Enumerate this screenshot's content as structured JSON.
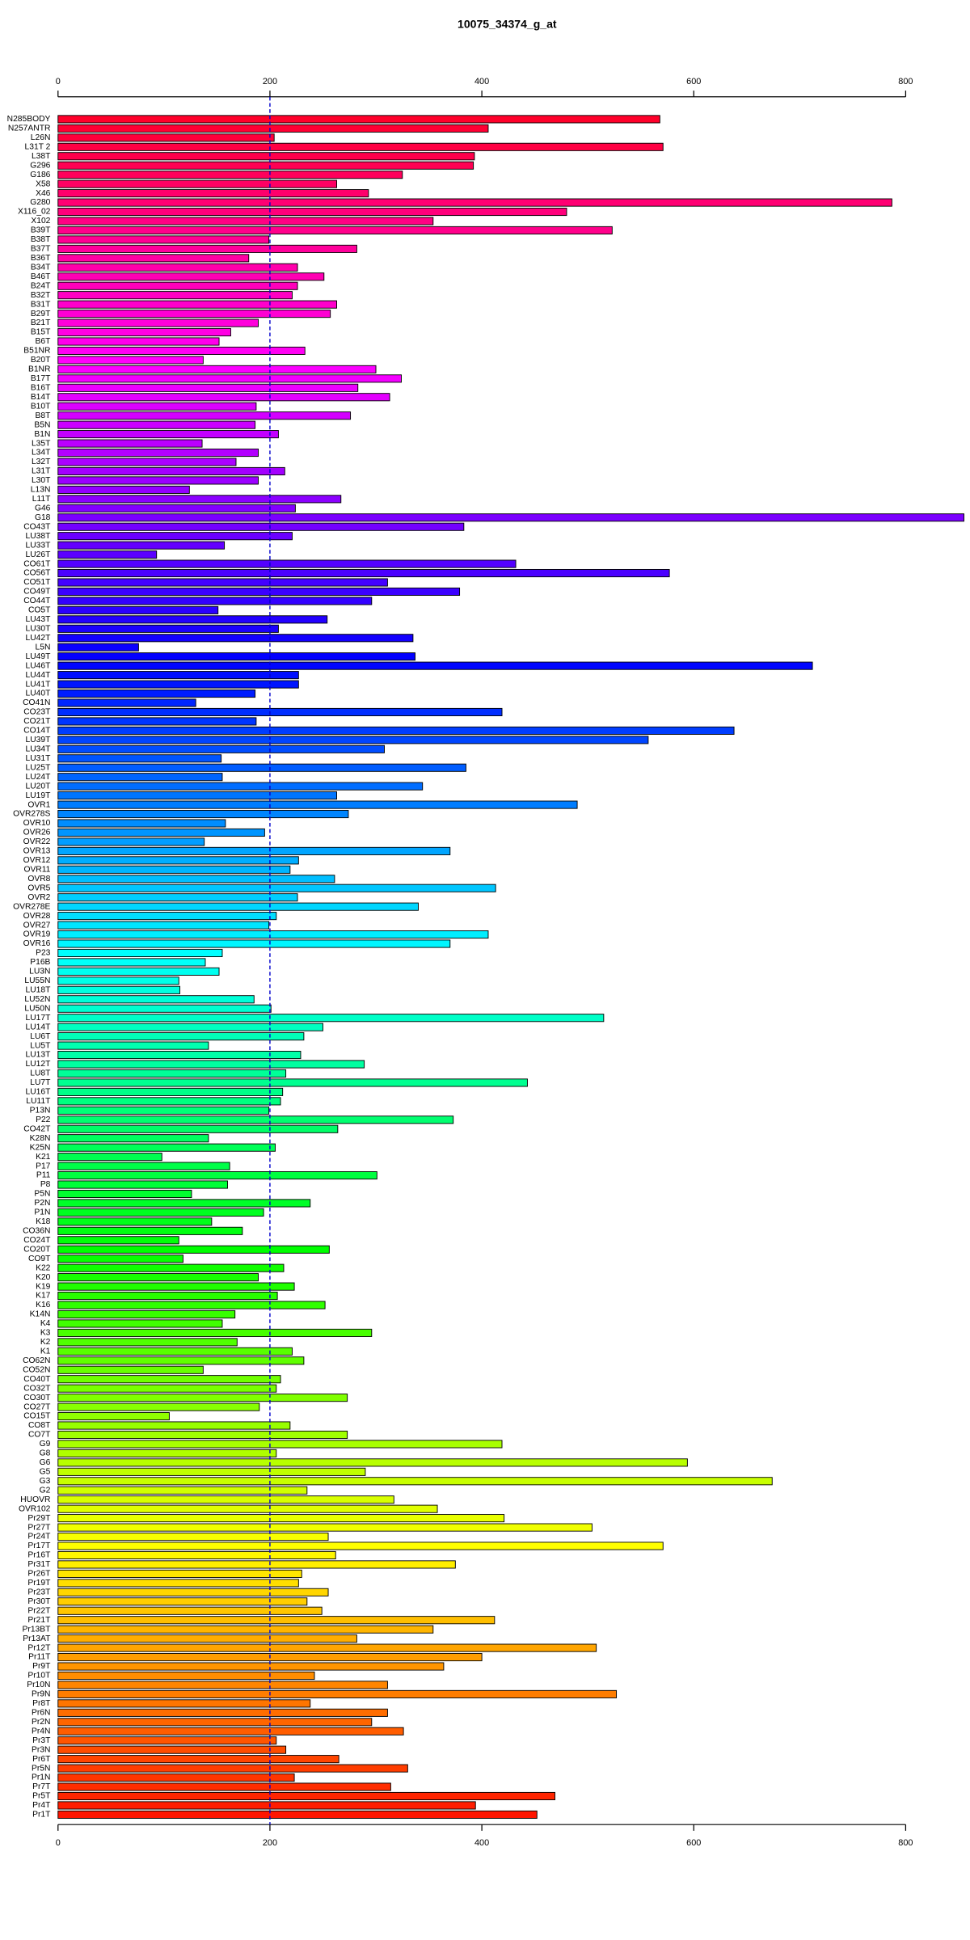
{
  "chart_data": {
    "type": "barh",
    "title": "10075_34374_g_at",
    "categories": [
      "N285BODY",
      "N257ANTR",
      "L26N",
      "L31T 2",
      "L38T",
      "G296",
      "G186",
      "X58",
      "X46",
      "G280",
      "X116_02",
      "X102",
      "B39T",
      "B38T",
      "B37T",
      "B36T",
      "B34T",
      "B46T",
      "B24T",
      "B32T",
      "B31T",
      "B29T",
      "B21T",
      "B15T",
      "B6T",
      "B51NR",
      "B20T",
      "B1NR",
      "B17T",
      "B16T",
      "B14T",
      "B10T",
      "B8T",
      "B5N",
      "B1N",
      "L35T",
      "L34T",
      "L32T",
      "L31T",
      "L30T",
      "L13N",
      "L11T",
      "G46",
      "G18",
      "CO43T",
      "LU38T",
      "LU33T",
      "LU26T",
      "CO61T",
      "CO56T",
      "CO51T",
      "CO49T",
      "CO44T",
      "CO5T",
      "LU43T",
      "LU30T",
      "LU42T",
      "L5N",
      "LU49T",
      "LU46T",
      "LU44T",
      "LU41T",
      "LU40T",
      "CO41N",
      "CO23T",
      "CO21T",
      "CO14T",
      "LU39T",
      "LU34T",
      "LU31T",
      "LU25T",
      "LU24T",
      "LU20T",
      "LU19T",
      "OVR1",
      "OVR278S",
      "OVR10",
      "OVR26",
      "OVR22",
      "OVR13",
      "OVR12",
      "OVR11",
      "OVR8",
      "OVR5",
      "OVR2",
      "OVR278E",
      "OVR28",
      "OVR27",
      "OVR19",
      "OVR16",
      "P23",
      "P16B",
      "LU3N",
      "LU55N",
      "LU18T",
      "LU52N",
      "LU50N",
      "LU17T",
      "LU14T",
      "LU6T",
      "LU5T",
      "LU13T",
      "LU12T",
      "LU8T",
      "LU7T",
      "LU16T",
      "LU11T",
      "P13N",
      "P22",
      "CO42T",
      "K28N",
      "K25N",
      "K21",
      "P17",
      "P11",
      "P8",
      "P5N",
      "P2N",
      "P1N",
      "K18",
      "CO36N",
      "CO24T",
      "CO20T",
      "CO9T",
      "K22",
      "K20",
      "K19",
      "K17",
      "K16",
      "K14N",
      "K4",
      "K3",
      "K2",
      "K1",
      "CO62N",
      "CO52N",
      "CO40T",
      "CO32T",
      "CO30T",
      "CO27T",
      "CO15T",
      "CO8T",
      "CO7T",
      "G9",
      "G8",
      "G6",
      "G5",
      "G3",
      "G2",
      "HUOVR",
      "OVR102",
      "Pr29T",
      "Pr27T",
      "Pr24T",
      "Pr17T",
      "Pr16T",
      "Pr31T",
      "Pr26T",
      "Pr19T",
      "Pr23T",
      "Pr30T",
      "Pr22T",
      "Pr21T",
      "Pr13BT",
      "Pr13AT",
      "Pr12T",
      "Pr11T",
      "Pr9T",
      "Pr10T",
      "Pr10N",
      "Pr9N",
      "Pr8T",
      "Pr6N",
      "Pr2N",
      "Pr4N",
      "Pr3T",
      "Pr3N",
      "Pr6T",
      "Pr5N",
      "Pr1N",
      "Pr7T",
      "Pr5T",
      "Pr4T",
      "Pr1T"
    ],
    "values": [
      568,
      406,
      204,
      571,
      393,
      392,
      325,
      263,
      293,
      787,
      480,
      354,
      523,
      199,
      282,
      180,
      226,
      251,
      226,
      221,
      263,
      257,
      189,
      163,
      152,
      233,
      137,
      300,
      324,
      283,
      313,
      187,
      276,
      186,
      208,
      136,
      189,
      168,
      214,
      189,
      124,
      267,
      224,
      855,
      383,
      221,
      157,
      93,
      432,
      577,
      311,
      379,
      296,
      151,
      254,
      208,
      335,
      76,
      337,
      712,
      227,
      227,
      186,
      130,
      419,
      187,
      638,
      557,
      308,
      154,
      385,
      155,
      344,
      263,
      490,
      274,
      158,
      195,
      138,
      370,
      227,
      219,
      261,
      413,
      226,
      340,
      206,
      199,
      406,
      370,
      155,
      139,
      152,
      114,
      115,
      185,
      201,
      515,
      250,
      232,
      142,
      229,
      289,
      215,
      443,
      212,
      210,
      199,
      373,
      264,
      142,
      205,
      98,
      162,
      301,
      160,
      126,
      238,
      194,
      145,
      174,
      114,
      256,
      118,
      213,
      189,
      223,
      207,
      252,
      167,
      155,
      296,
      169,
      221,
      232,
      137,
      210,
      206,
      273,
      190,
      105,
      219,
      273,
      419,
      206,
      594,
      290,
      674,
      235,
      317,
      358,
      421,
      504,
      255,
      571,
      262,
      375,
      230,
      227,
      255,
      235,
      249,
      412,
      354,
      282,
      508,
      400,
      364,
      242,
      311,
      527,
      238,
      311,
      296,
      326,
      206,
      215,
      265,
      330,
      223,
      314,
      469,
      394,
      452
    ],
    "palette": "rainbow",
    "hue_range": [
      350,
      5
    ],
    "xlim": [
      0,
      800
    ],
    "xticks": [
      0,
      200,
      400,
      600,
      800
    ],
    "reference_line": 200
  }
}
